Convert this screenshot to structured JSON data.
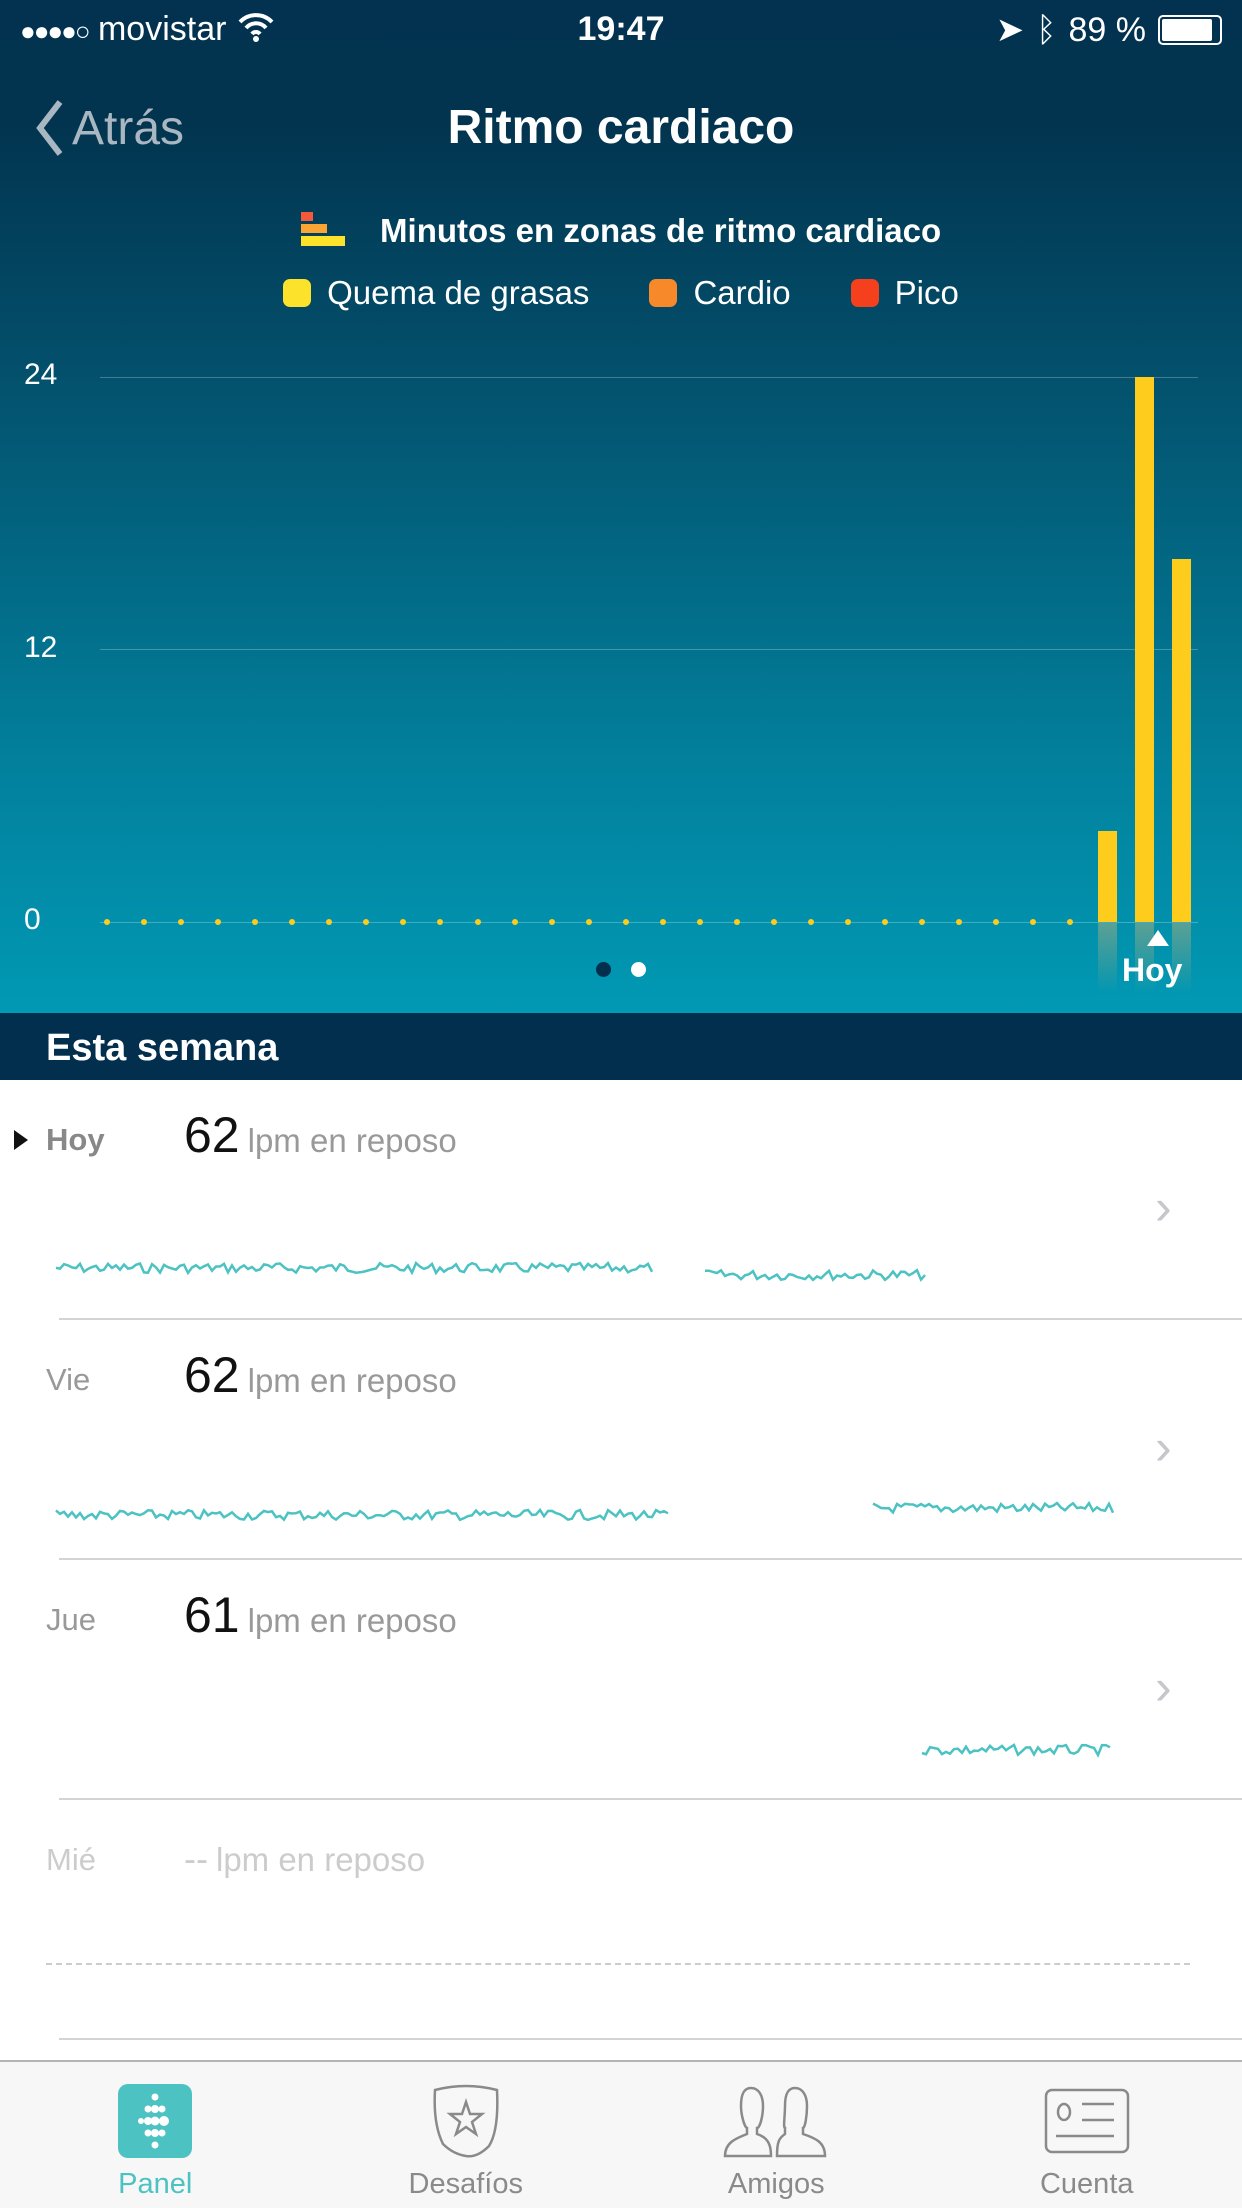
{
  "status_bar": {
    "carrier": "movistar",
    "time": "19:47",
    "battery": "89 %",
    "signal_bars": 4
  },
  "nav": {
    "back_label": "Atrás",
    "title": "Ritmo cardiaco"
  },
  "chart_data": {
    "type": "bar",
    "title": "Minutos en zonas de ritmo cardiaco",
    "legend": [
      {
        "name": "Quema de grasas",
        "color": "#fde22b"
      },
      {
        "name": "Cardio",
        "color": "#f7892a"
      },
      {
        "name": "Pico",
        "color": "#f5401e"
      }
    ],
    "legend_placement": "top",
    "yticks": [
      "0",
      "12",
      "24"
    ],
    "ylim": [
      0,
      24
    ],
    "grid": true,
    "series": [
      {
        "name": "Quema de grasas",
        "values": [
          0,
          0,
          0,
          0,
          0,
          0,
          0,
          0,
          0,
          0,
          0,
          0,
          0,
          0,
          0,
          0,
          0,
          0,
          0,
          0,
          0,
          0,
          0,
          0,
          0,
          0,
          0,
          4,
          24,
          16
        ]
      }
    ],
    "x_label_last": "Hoy"
  },
  "pager": {
    "pages": 2,
    "current": 2
  },
  "section_title": "Esta semana",
  "rows": [
    {
      "day": "Hoy",
      "value": "62",
      "unit": "lpm en reposo",
      "selected": true
    },
    {
      "day": "Vie",
      "value": "62",
      "unit": "lpm en reposo"
    },
    {
      "day": "Jue",
      "value": "61",
      "unit": "lpm en reposo"
    },
    {
      "day": "Mié",
      "value": "--",
      "unit": "lpm en reposo"
    }
  ],
  "tabs": [
    {
      "label": "Panel",
      "active": true
    },
    {
      "label": "Desafíos"
    },
    {
      "label": "Amigos"
    },
    {
      "label": "Cuenta"
    }
  ],
  "colors": {
    "accent": "#4cc2c2",
    "bar": "#fdcc1c",
    "header_dark": "#02324f",
    "header_light": "#0199b4"
  }
}
